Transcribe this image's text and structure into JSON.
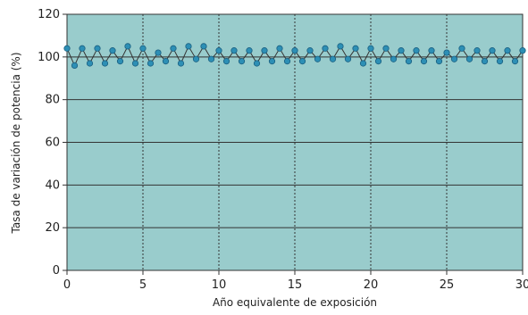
{
  "chart_data": {
    "type": "line",
    "title": "",
    "xlabel": "Año equivalente de exposición",
    "ylabel": "Tasa de variación de potencia (%)",
    "xlim": [
      0,
      30
    ],
    "ylim": [
      0,
      120
    ],
    "x_ticks": [
      "0",
      "5",
      "10",
      "15",
      "20",
      "25",
      "30"
    ],
    "y_ticks": [
      "0",
      "20",
      "40",
      "60",
      "80",
      "100",
      "120"
    ],
    "grid": {
      "horizontal": "solid",
      "vertical": "dashed"
    },
    "legend": "none",
    "colors": {
      "plot_background": "#99cccc",
      "line": "#333333",
      "marker": "#2d8fb5",
      "marker_edge": "#1a5f80",
      "grid": "#333333"
    },
    "series": [
      {
        "x": [
          0,
          0.5,
          1,
          1.5,
          2,
          2.5,
          3,
          3.5,
          4,
          4.5,
          5,
          5.5,
          6,
          6.5,
          7,
          7.5,
          8,
          8.5,
          9,
          9.5,
          10,
          10.5,
          11,
          11.5,
          12,
          12.5,
          13,
          13.5,
          14,
          14.5,
          15,
          15.5,
          16,
          16.5,
          17,
          17.5,
          18,
          18.5,
          19,
          19.5,
          20,
          20.5,
          21,
          21.5,
          22,
          22.5,
          23,
          23.5,
          24,
          24.5,
          25,
          25.5,
          26,
          26.5,
          27,
          27.5,
          28,
          28.5,
          29,
          29.5,
          30
        ],
        "y": [
          104,
          96,
          104,
          97,
          104,
          97,
          103,
          98,
          105,
          97,
          104,
          97,
          102,
          98,
          104,
          97,
          105,
          99,
          105,
          99,
          103,
          98,
          103,
          98,
          103,
          97,
          103,
          98,
          104,
          98,
          103,
          98,
          103,
          99,
          104,
          99,
          105,
          99,
          104,
          97,
          104,
          98,
          104,
          99,
          103,
          98,
          103,
          98,
          103,
          98,
          102,
          99,
          104,
          99,
          103,
          98,
          103,
          98,
          103,
          98,
          103
        ]
      }
    ]
  }
}
